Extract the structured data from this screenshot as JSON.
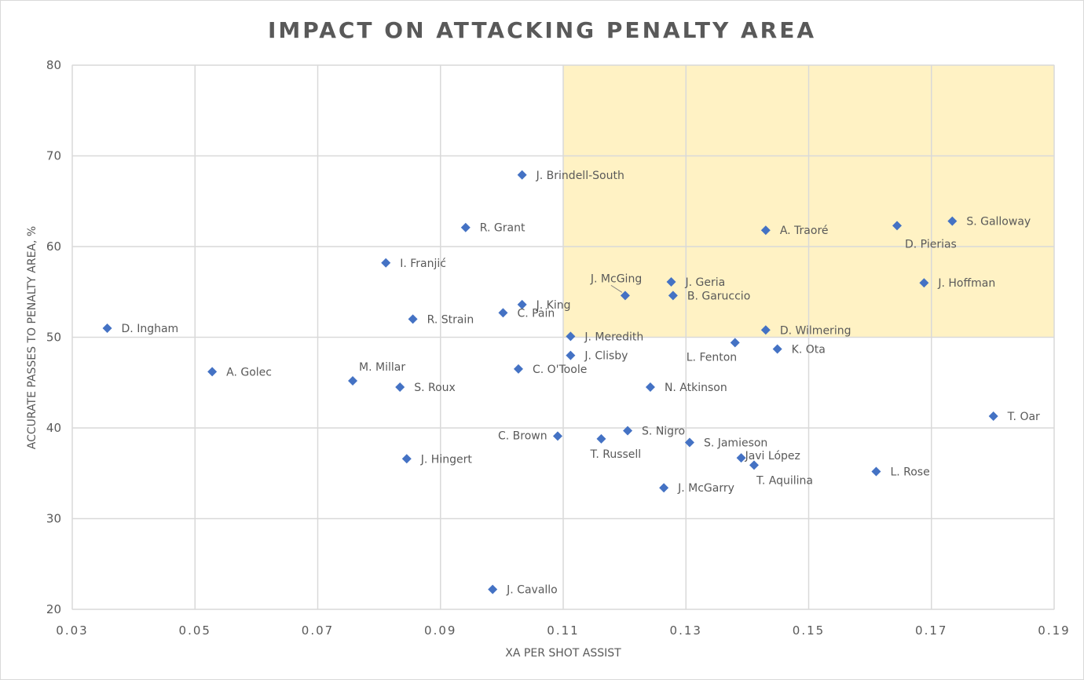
{
  "chart_data": {
    "type": "scatter",
    "title": "IMPACT ON ATTACKING PENALTY AREA",
    "xlabel": "XA PER SHOT ASSIST",
    "ylabel": "ACCURATE PASSES TO PENALTY AREA, %",
    "xlim": [
      0.03,
      0.19
    ],
    "ylim": [
      20,
      80
    ],
    "x_ticks": [
      "0.03",
      "0.05",
      "0.07",
      "0.09",
      "0.11",
      "0.13",
      "0.15",
      "0.17",
      "0.19"
    ],
    "y_ticks": [
      "20",
      "30",
      "40",
      "50",
      "60",
      "70",
      "80"
    ],
    "grid": true,
    "highlight_region": {
      "x": [
        0.11,
        0.19
      ],
      "y": [
        50,
        80
      ],
      "color": "#fff2c4"
    },
    "marker_color": "#4472c4",
    "points": [
      {
        "label": "J. Brindell-South",
        "x": 0.1033,
        "y": 67.9
      },
      {
        "label": "R. Grant",
        "x": 0.0941,
        "y": 62.1
      },
      {
        "label": "I. Franjić",
        "x": 0.0811,
        "y": 58.2
      },
      {
        "label": "D. Ingham",
        "x": 0.0357,
        "y": 51.0
      },
      {
        "label": "R. Strain",
        "x": 0.0855,
        "y": 52.0
      },
      {
        "label": "C. Pain",
        "x": 0.1002,
        "y": 52.7
      },
      {
        "label": "J. King",
        "x": 0.1033,
        "y": 53.6
      },
      {
        "label": "J. McGing",
        "x": 0.1201,
        "y": 54.6
      },
      {
        "label": "J. Geria",
        "x": 0.1276,
        "y": 56.1
      },
      {
        "label": "B. Garuccio",
        "x": 0.1279,
        "y": 54.6
      },
      {
        "label": "A. Traoré",
        "x": 0.143,
        "y": 61.8
      },
      {
        "label": "D. Pierias",
        "x": 0.1644,
        "y": 62.3
      },
      {
        "label": "S. Galloway",
        "x": 0.1734,
        "y": 62.8
      },
      {
        "label": "J. Hoffman",
        "x": 0.1688,
        "y": 56.0
      },
      {
        "label": "D. Wilmering",
        "x": 0.143,
        "y": 50.8
      },
      {
        "label": "L. Fenton",
        "x": 0.138,
        "y": 49.4
      },
      {
        "label": "K. Ota",
        "x": 0.1449,
        "y": 48.7
      },
      {
        "label": "J. Meredith",
        "x": 0.1112,
        "y": 50.1
      },
      {
        "label": "J. Clisby",
        "x": 0.1112,
        "y": 48.0
      },
      {
        "label": "C. O'Toole",
        "x": 0.1027,
        "y": 46.5
      },
      {
        "label": "A. Golec",
        "x": 0.0528,
        "y": 46.2
      },
      {
        "label": "M. Millar",
        "x": 0.0757,
        "y": 45.2
      },
      {
        "label": "S. Roux",
        "x": 0.0834,
        "y": 44.5
      },
      {
        "label": "N. Atkinson",
        "x": 0.1242,
        "y": 44.5
      },
      {
        "label": "T. Oar",
        "x": 0.1801,
        "y": 41.3
      },
      {
        "label": "C. Brown",
        "x": 0.1091,
        "y": 39.1
      },
      {
        "label": "T. Russell",
        "x": 0.1162,
        "y": 38.8
      },
      {
        "label": "S. Nigro",
        "x": 0.1205,
        "y": 39.7
      },
      {
        "label": "S. Jamieson",
        "x": 0.1306,
        "y": 38.4
      },
      {
        "label": "J. Hingert",
        "x": 0.0845,
        "y": 36.6
      },
      {
        "label": "Javi López",
        "x": 0.139,
        "y": 36.7
      },
      {
        "label": "T. Aquilina",
        "x": 0.1411,
        "y": 35.9
      },
      {
        "label": "L. Rose",
        "x": 0.161,
        "y": 35.2
      },
      {
        "label": "J. McGarry",
        "x": 0.1264,
        "y": 33.4
      },
      {
        "label": "J. Cavallo",
        "x": 0.0985,
        "y": 22.2
      }
    ]
  }
}
